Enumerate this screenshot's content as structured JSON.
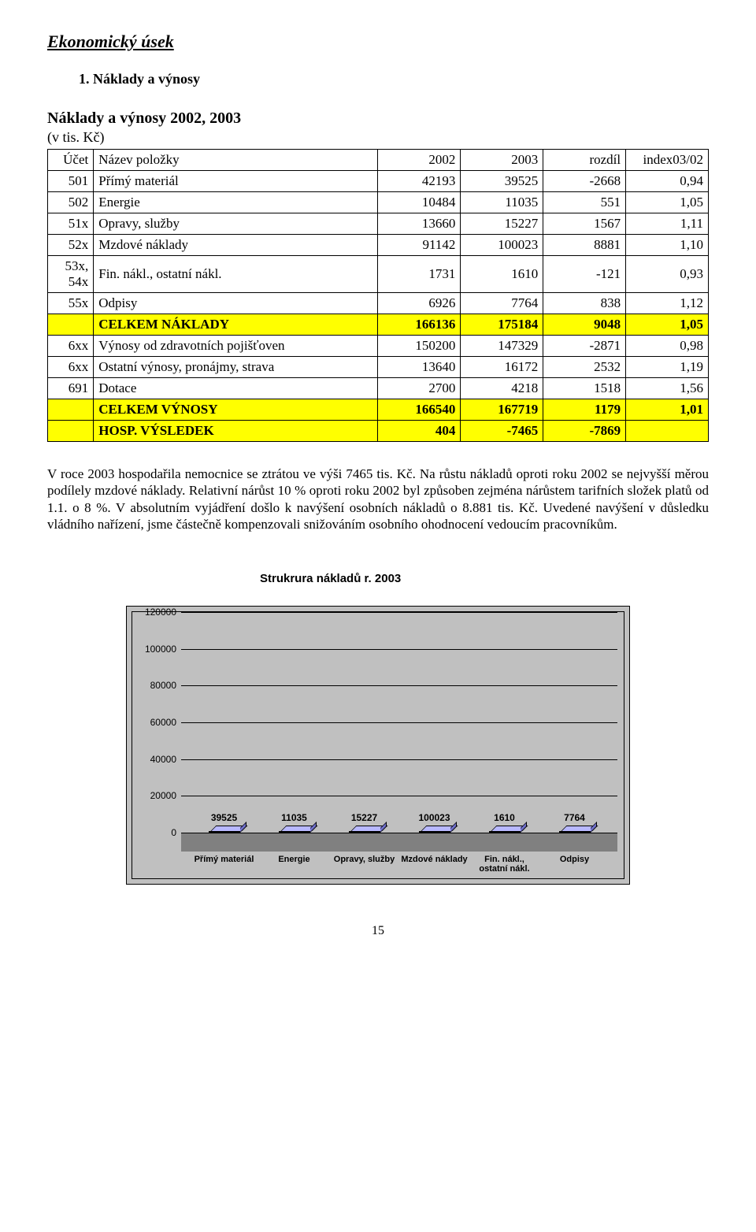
{
  "section_heading": "Ekonomický úsek",
  "subsection": "1. Náklady a výnosy",
  "table_title": "Náklady a výnosy 2002, 2003",
  "table_subtitle": "(v tis. Kč)",
  "table": {
    "headers": {
      "c0": "Účet",
      "c1": "Název položky",
      "c2": "2002",
      "c3": "2003",
      "c4": "rozdíl",
      "c5": "index03/02"
    },
    "rows": [
      {
        "ucet": "501",
        "nazev": "Přímý materiál",
        "v2002": "42193",
        "v2003": "39525",
        "rozdil": "-2668",
        "index": "0,94",
        "hl": false
      },
      {
        "ucet": "502",
        "nazev": "Energie",
        "v2002": "10484",
        "v2003": "11035",
        "rozdil": "551",
        "index": "1,05",
        "hl": false
      },
      {
        "ucet": "51x",
        "nazev": "Opravy, služby",
        "v2002": "13660",
        "v2003": "15227",
        "rozdil": "1567",
        "index": "1,11",
        "hl": false
      },
      {
        "ucet": "52x",
        "nazev": "Mzdové náklady",
        "v2002": "91142",
        "v2003": "100023",
        "rozdil": "8881",
        "index": "1,10",
        "hl": false
      },
      {
        "ucet": "53x, 54x",
        "nazev": "Fin. nákl., ostatní nákl.",
        "v2002": "1731",
        "v2003": "1610",
        "rozdil": "-121",
        "index": "0,93",
        "hl": false
      },
      {
        "ucet": "55x",
        "nazev": "Odpisy",
        "v2002": "6926",
        "v2003": "7764",
        "rozdil": "838",
        "index": "1,12",
        "hl": false
      },
      {
        "ucet": "",
        "nazev": "CELKEM NÁKLADY",
        "v2002": "166136",
        "v2003": "175184",
        "rozdil": "9048",
        "index": "1,05",
        "hl": true
      },
      {
        "ucet": "6xx",
        "nazev": "Výnosy od zdravotních pojišťoven",
        "v2002": "150200",
        "v2003": "147329",
        "rozdil": "-2871",
        "index": "0,98",
        "hl": false
      },
      {
        "ucet": "6xx",
        "nazev": "Ostatní výnosy, pronájmy, strava",
        "v2002": "13640",
        "v2003": "16172",
        "rozdil": "2532",
        "index": "1,19",
        "hl": false
      },
      {
        "ucet": "691",
        "nazev": "Dotace",
        "v2002": "2700",
        "v2003": "4218",
        "rozdil": "1518",
        "index": "1,56",
        "hl": false
      },
      {
        "ucet": "",
        "nazev": "CELKEM VÝNOSY",
        "v2002": "166540",
        "v2003": "167719",
        "rozdil": "1179",
        "index": "1,01",
        "hl": true
      },
      {
        "ucet": "",
        "nazev": "HOSP. VÝSLEDEK",
        "v2002": "404",
        "v2003": "-7465",
        "rozdil": "-7869",
        "index": "",
        "hl": true
      }
    ]
  },
  "paragraph": "V roce 2003 hospodařila nemocnice se ztrátou ve výši 7465 tis. Kč. Na růstu nákladů oproti roku 2002 se nejvyšší měrou podílely mzdové náklady. Relativní nárůst 10 % oproti roku 2002 byl způsoben zejména nárůstem tarifních složek platů od 1.1. o 8 %. V absolutním vyjádření došlo k navýšení osobních nákladů o 8.881 tis. Kč. Uvedené navýšení v důsledku vládního nařízení, jsme částečně kompenzovali snižováním osobního ohodnocení vedoucím pracovníkům.",
  "chart": {
    "type": "bar",
    "title": "Strukrura nákladů r. 2003",
    "categories": [
      "Přímý materiál",
      "Energie",
      "Opravy, služby",
      "Mzdové náklady",
      "Fin. nákl., ostatní nákl.",
      "Odpisy"
    ],
    "values": [
      39525,
      11035,
      15227,
      100023,
      1610,
      7764
    ],
    "bar_color": "#9999ff",
    "bar_top_color": "#b8b8ff",
    "bar_side_color": "#7070cc",
    "background_color": "#c0c0c0",
    "floor_color": "#808080",
    "grid_color": "#000000",
    "ylim": [
      0,
      120000
    ],
    "ytick_step": 20000,
    "yticks": [
      "0",
      "20000",
      "40000",
      "60000",
      "80000",
      "100000",
      "120000"
    ],
    "label_fontsize": 11,
    "value_fontsize": 12,
    "title_fontsize": 15
  },
  "page_number": "15"
}
